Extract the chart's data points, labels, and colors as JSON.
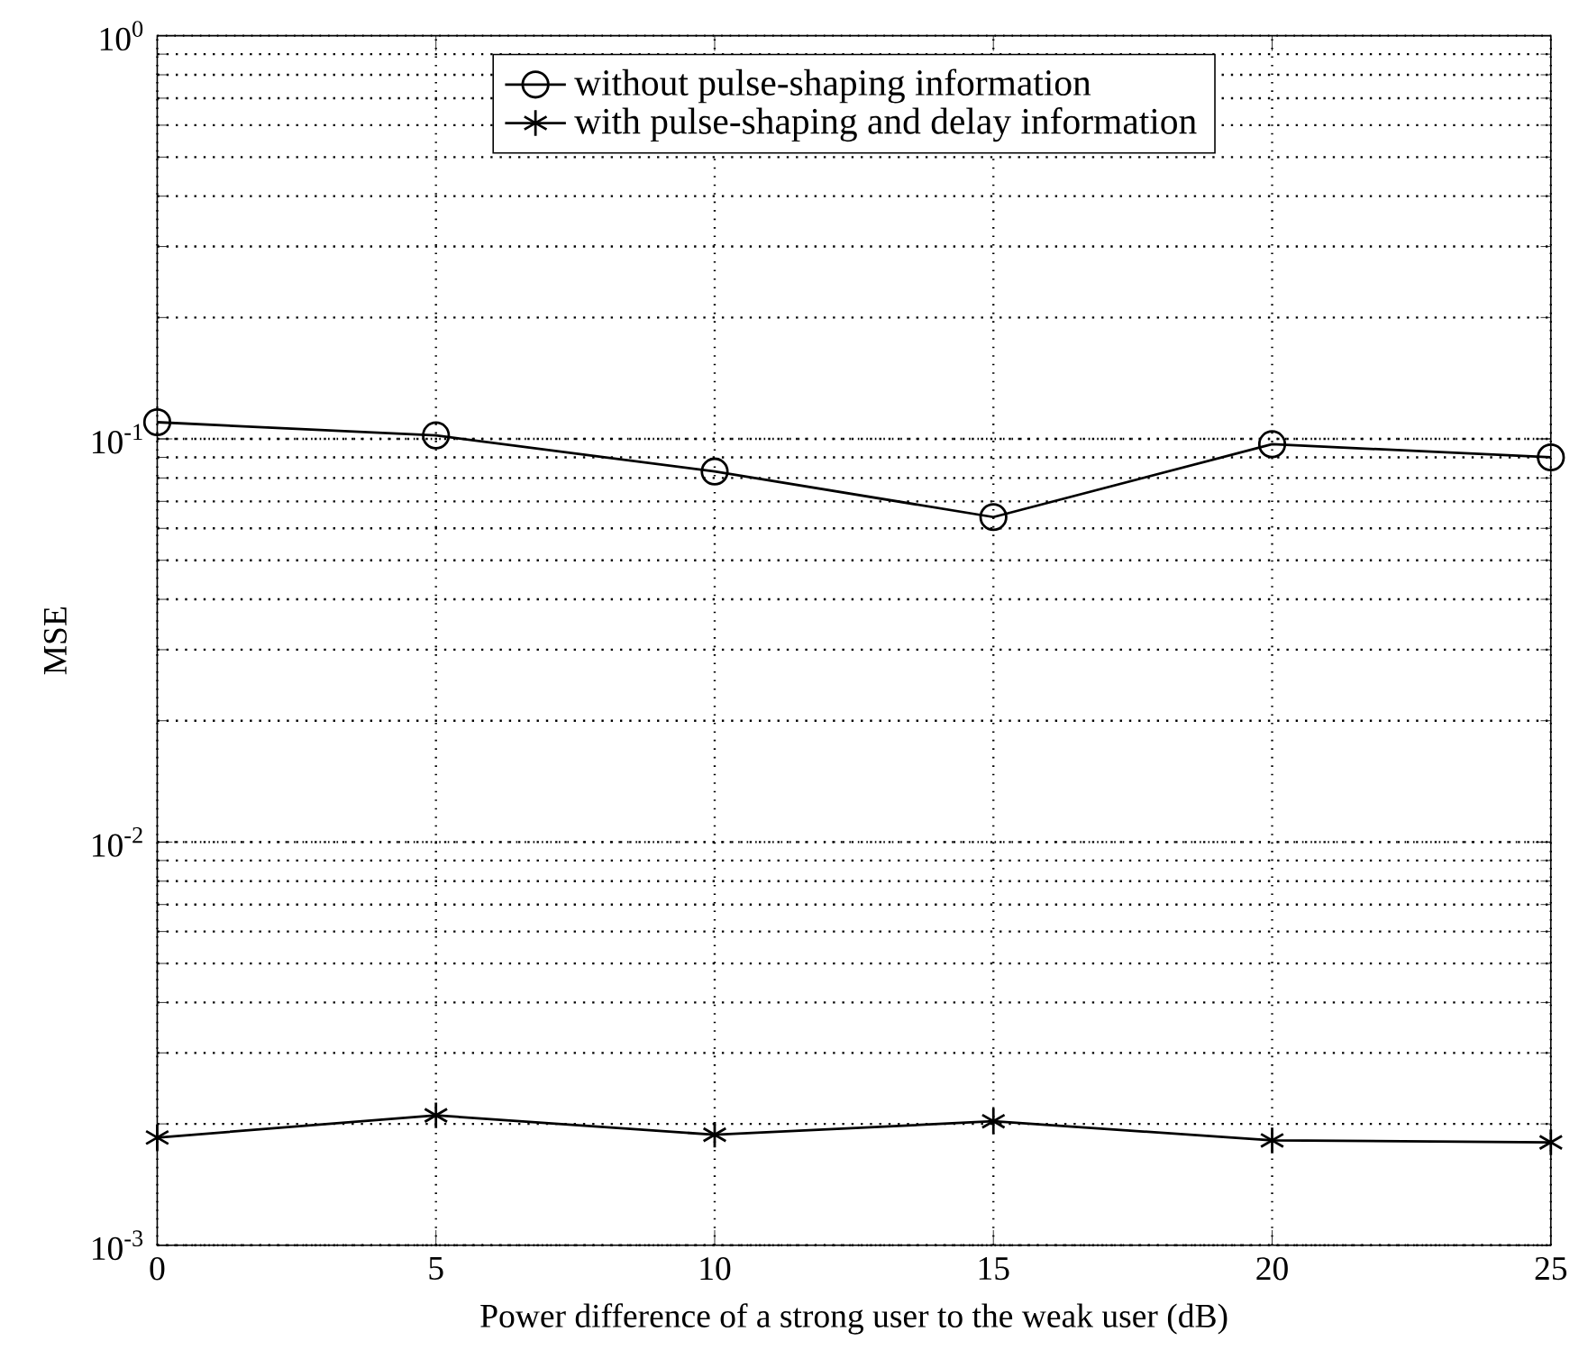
{
  "chart_data": {
    "type": "line",
    "xlabel": "Power difference of a strong user to the weak user (dB)",
    "ylabel": "MSE",
    "x": [
      0,
      5,
      10,
      15,
      20,
      25
    ],
    "series": [
      {
        "name": "without pulse-shaping information",
        "color": "#000000",
        "marker": "circle",
        "values": [
          0.11,
          0.102,
          0.083,
          0.064,
          0.097,
          0.09
        ]
      },
      {
        "name": "with pulse-shaping and delay information",
        "color": "#000000",
        "marker": "cross",
        "values": [
          0.00185,
          0.0021,
          0.00188,
          0.00203,
          0.00182,
          0.0018
        ]
      }
    ],
    "log": "y",
    "xlim": [
      0,
      25
    ],
    "ylim": [
      0.001,
      1
    ],
    "xticks": [
      0,
      5,
      10,
      15,
      20,
      25
    ],
    "yticks": [
      {
        "value": 0.001,
        "label": "10$^{-3}$"
      },
      {
        "value": 0.01,
        "label": "10$^{-2}$"
      },
      {
        "value": 0.1,
        "label": "10$^{-1}$"
      },
      {
        "value": 1,
        "label": "10$^{0}$"
      }
    ],
    "grid": true,
    "legend": "top",
    "line_style": "solid"
  }
}
